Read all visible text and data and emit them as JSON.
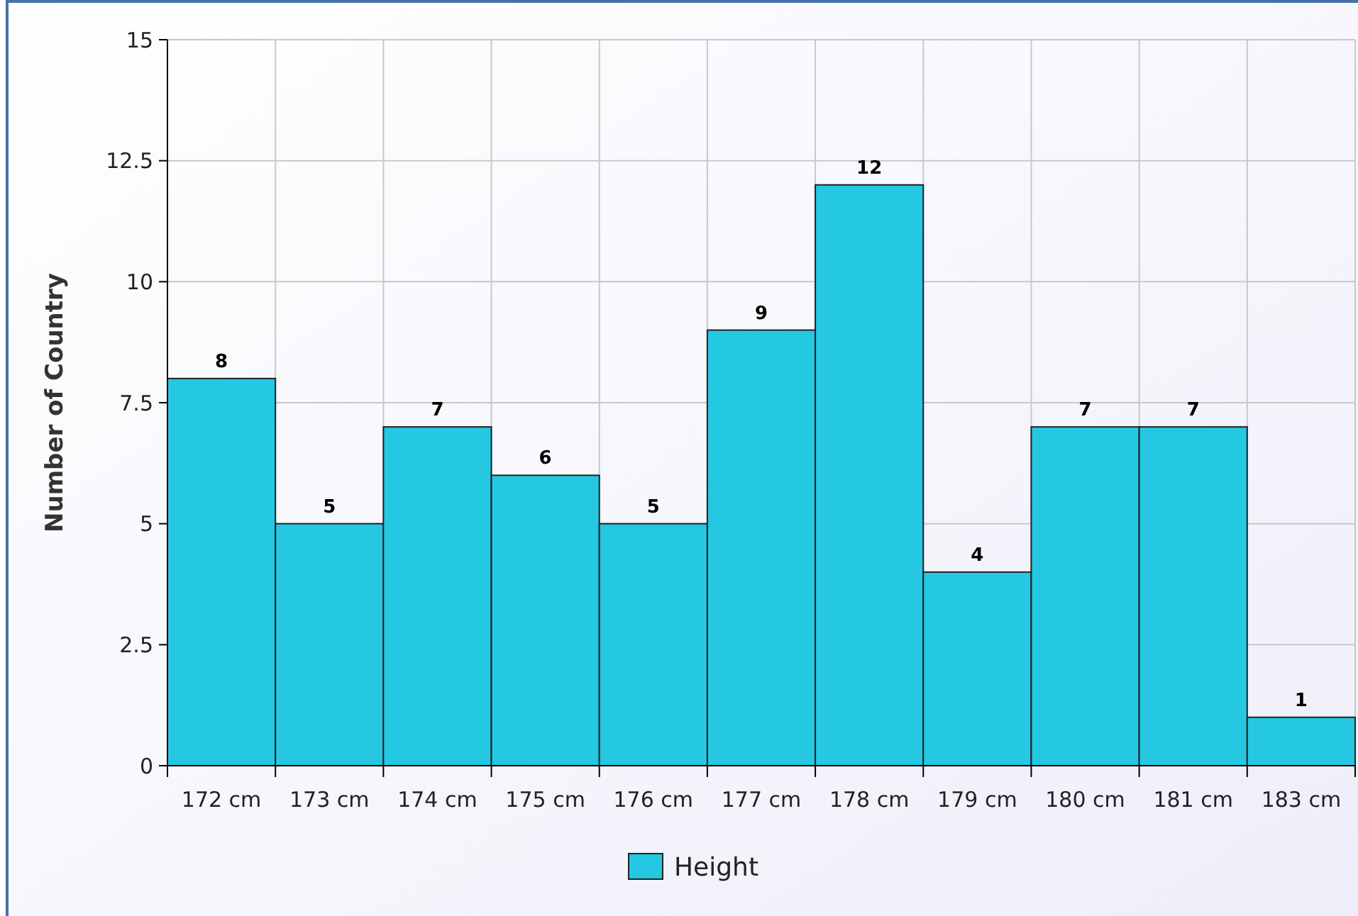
{
  "chart_data": {
    "type": "bar",
    "ylabel": "Number of Country",
    "categories": [
      "172 cm",
      "173 cm",
      "174 cm",
      "175 cm",
      "176 cm",
      "177 cm",
      "178 cm",
      "179 cm",
      "180 cm",
      "181 cm",
      "183 cm"
    ],
    "series": [
      {
        "name": "Height",
        "color": "#24c8e3",
        "values": [
          8,
          5,
          7,
          6,
          5,
          9,
          12,
          4,
          7,
          7,
          1
        ]
      }
    ],
    "ylim": [
      0,
      15
    ],
    "yticks": [
      0,
      2.5,
      5,
      7.5,
      10,
      12.5,
      15
    ],
    "grid": true,
    "legend": "bottom",
    "data_labels": true
  }
}
